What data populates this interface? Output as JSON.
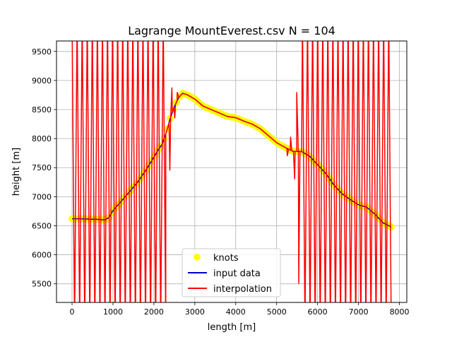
{
  "chart_data": {
    "type": "line",
    "title": "Lagrange MountEverest.csv N = 104",
    "xlabel": "length [m]",
    "ylabel": "height [m]",
    "xlim": [
      -380,
      8180
    ],
    "ylim": [
      5180,
      9680
    ],
    "xticks": [
      0,
      1000,
      2000,
      3000,
      4000,
      5000,
      6000,
      7000,
      8000
    ],
    "yticks": [
      5500,
      6000,
      6500,
      7000,
      7500,
      8000,
      8500,
      9000,
      9500
    ],
    "xtick_labels": [
      "0",
      "1000",
      "2000",
      "3000",
      "4000",
      "5000",
      "6000",
      "7000",
      "8000"
    ],
    "ytick_labels": [
      "5500",
      "6000",
      "6500",
      "7000",
      "7500",
      "8000",
      "8500",
      "9000",
      "9500"
    ],
    "grid": true,
    "legend_position": "lower-center",
    "profile": {
      "x": [
        0,
        200,
        400,
        600,
        800,
        900,
        1000,
        1200,
        1400,
        1600,
        1800,
        2000,
        2100,
        2200,
        2300,
        2400,
        2500,
        2600,
        2700,
        2800,
        2900,
        3000,
        3200,
        3400,
        3600,
        3800,
        4000,
        4200,
        4400,
        4600,
        4800,
        5000,
        5200,
        5400,
        5600,
        5800,
        6000,
        6200,
        6400,
        6600,
        6800,
        7000,
        7200,
        7400,
        7600,
        7800
      ],
      "y": [
        6620,
        6620,
        6615,
        6610,
        6600,
        6640,
        6760,
        6920,
        7080,
        7250,
        7450,
        7680,
        7800,
        7900,
        8100,
        8350,
        8550,
        8700,
        8780,
        8760,
        8720,
        8680,
        8560,
        8500,
        8440,
        8380,
        8360,
        8300,
        8250,
        8170,
        8050,
        7930,
        7850,
        7780,
        7780,
        7700,
        7550,
        7400,
        7200,
        7050,
        6950,
        6860,
        6820,
        6700,
        6550,
        6480
      ]
    },
    "series": [
      {
        "name": "knots",
        "color": "#ffff00",
        "style": "markers"
      },
      {
        "name": "input data",
        "color": "#0000cc",
        "style": "line"
      },
      {
        "name": "interpolation",
        "color": "#ff0000",
        "style": "line",
        "oscillation_left_x_range": [
          0,
          2290
        ],
        "oscillation_right_x_range": [
          5630,
          7800
        ],
        "oscillation_count_left": 37,
        "oscillation_count_right": 35,
        "wiggles": [
          {
            "x": 2390,
            "y": 7450
          },
          {
            "x": 2440,
            "y": 8880
          },
          {
            "x": 2510,
            "y": 8350
          },
          {
            "x": 2570,
            "y": 8800
          },
          {
            "x": 5340,
            "y": 8030
          },
          {
            "x": 5260,
            "y": 7700
          },
          {
            "x": 5440,
            "y": 7300
          },
          {
            "x": 5490,
            "y": 8800
          },
          {
            "x": 5540,
            "y": 5500
          }
        ]
      }
    ]
  },
  "colors": {
    "axes": "#000000",
    "grid": "#b0b0b0",
    "knots": "#ffff00",
    "input_data": "#0000cc",
    "interpolation": "#ff0000"
  }
}
